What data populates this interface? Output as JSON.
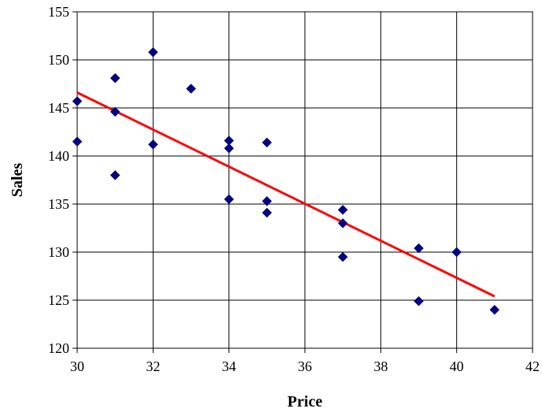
{
  "chart_data": {
    "type": "scatter",
    "title": "",
    "xlabel": "Price",
    "ylabel": "Sales",
    "xlim": [
      30,
      42
    ],
    "ylim": [
      120,
      155
    ],
    "x_ticks": [
      30,
      32,
      34,
      36,
      38,
      40,
      42
    ],
    "y_ticks": [
      120,
      125,
      130,
      135,
      140,
      145,
      150,
      155
    ],
    "grid": true,
    "legend": "none",
    "colors": {
      "points": "#000080",
      "trendline": "#ff0000",
      "grid": "#000000"
    },
    "points": [
      {
        "x": 30,
        "y": 145.7
      },
      {
        "x": 30,
        "y": 141.5
      },
      {
        "x": 31,
        "y": 148.1
      },
      {
        "x": 31,
        "y": 144.6
      },
      {
        "x": 31,
        "y": 138.0
      },
      {
        "x": 32,
        "y": 150.8
      },
      {
        "x": 32,
        "y": 141.2
      },
      {
        "x": 33,
        "y": 147.0
      },
      {
        "x": 34,
        "y": 141.6
      },
      {
        "x": 34,
        "y": 140.8
      },
      {
        "x": 34,
        "y": 135.5
      },
      {
        "x": 35,
        "y": 141.4
      },
      {
        "x": 35,
        "y": 135.3
      },
      {
        "x": 35,
        "y": 134.1
      },
      {
        "x": 37,
        "y": 134.4
      },
      {
        "x": 37,
        "y": 133.0
      },
      {
        "x": 37,
        "y": 129.5
      },
      {
        "x": 39,
        "y": 130.4
      },
      {
        "x": 39,
        "y": 124.9
      },
      {
        "x": 40,
        "y": 130.0
      },
      {
        "x": 41,
        "y": 124.0
      }
    ],
    "trendline": {
      "type": "linear",
      "start": {
        "x": 30,
        "y": 146.6
      },
      "end": {
        "x": 41,
        "y": 125.4
      }
    }
  }
}
